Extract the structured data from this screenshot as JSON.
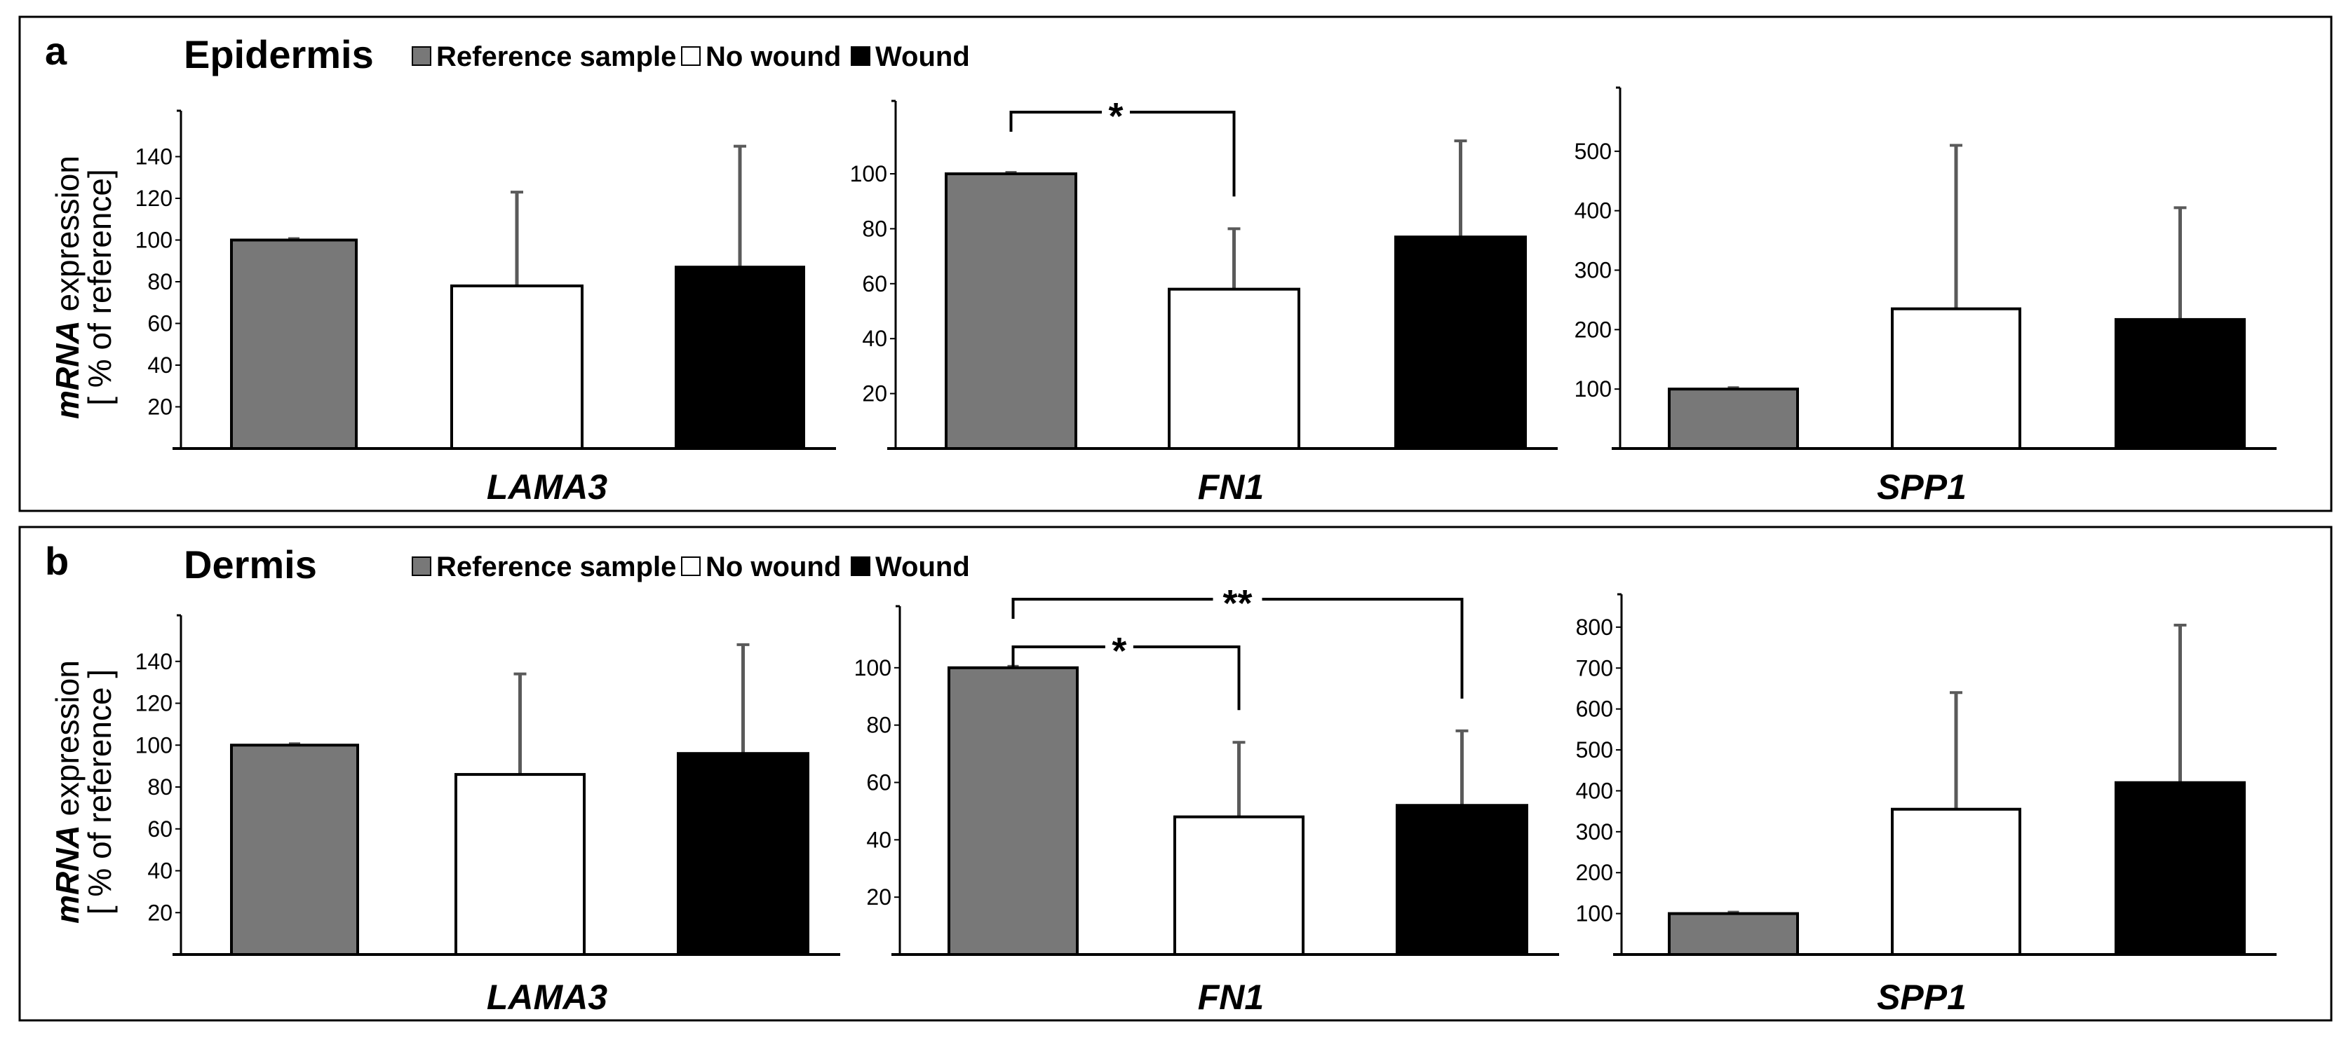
{
  "legend": {
    "reference": "Reference sample",
    "nowound": "No wound",
    "wound": "Wound"
  },
  "colors": {
    "reference": "#787878",
    "nowound": "#ffffff",
    "wound": "#000000",
    "error_bar": "#5a5a5a"
  },
  "ylabel": {
    "italic": "mRNA",
    "rest": " expression",
    "line2_a": "[ % of reference]",
    "line2_b": "[ % of reference ]"
  },
  "panels": [
    {
      "letter": "a",
      "title": "Epidermis"
    },
    {
      "letter": "b",
      "title": "Dermis"
    }
  ],
  "chart_data": [
    {
      "id": "a-lama3",
      "type": "bar",
      "panel": "a",
      "tissue": "Epidermis",
      "title": "LAMA3",
      "categories": [
        "Reference sample",
        "No wound",
        "Wound"
      ],
      "values": [
        100,
        78,
        87
      ],
      "errors": [
        0,
        45,
        58
      ],
      "ticks": [
        20,
        40,
        60,
        80,
        100,
        120,
        140
      ],
      "ylim": [
        0,
        160
      ],
      "significance": []
    },
    {
      "id": "a-fn1",
      "type": "bar",
      "panel": "a",
      "tissue": "Epidermis",
      "title": "FN1",
      "categories": [
        "Reference sample",
        "No wound",
        "Wound"
      ],
      "values": [
        100,
        58,
        77
      ],
      "errors": [
        0,
        22,
        35
      ],
      "ticks": [
        20,
        40,
        60,
        80,
        100
      ],
      "ylim": [
        0,
        125
      ],
      "significance": [
        {
          "from": 0,
          "to": 1,
          "label": "*"
        }
      ]
    },
    {
      "id": "a-spp1",
      "type": "bar",
      "panel": "a",
      "tissue": "Epidermis",
      "title": "SPP1",
      "categories": [
        "Reference sample",
        "No wound",
        "Wound"
      ],
      "values": [
        100,
        235,
        217
      ],
      "errors": [
        0,
        275,
        188
      ],
      "ticks": [
        100,
        200,
        300,
        400,
        500
      ],
      "ylim": [
        0,
        600
      ],
      "significance": []
    },
    {
      "id": "b-lama3",
      "type": "bar",
      "panel": "b",
      "tissue": "Dermis",
      "title": "LAMA3",
      "categories": [
        "Reference sample",
        "No wound",
        "Wound"
      ],
      "values": [
        100,
        86,
        96
      ],
      "errors": [
        0,
        48,
        52
      ],
      "ticks": [
        20,
        40,
        60,
        80,
        100,
        120,
        140
      ],
      "ylim": [
        0,
        160
      ],
      "significance": []
    },
    {
      "id": "b-fn1",
      "type": "bar",
      "panel": "b",
      "tissue": "Dermis",
      "title": "FN1",
      "categories": [
        "Reference sample",
        "No wound",
        "Wound"
      ],
      "values": [
        100,
        48,
        52
      ],
      "errors": [
        0,
        26,
        26
      ],
      "ticks": [
        20,
        40,
        60,
        80,
        100
      ],
      "ylim": [
        0,
        120
      ],
      "significance": [
        {
          "from": 0,
          "to": 1,
          "label": "*"
        },
        {
          "from": 0,
          "to": 2,
          "label": "**"
        }
      ]
    },
    {
      "id": "b-spp1",
      "type": "bar",
      "panel": "b",
      "tissue": "Dermis",
      "title": "SPP1",
      "categories": [
        "Reference sample",
        "No wound",
        "Wound"
      ],
      "values": [
        100,
        355,
        420
      ],
      "errors": [
        0,
        285,
        385
      ],
      "ticks": [
        100,
        200,
        300,
        400,
        500,
        600,
        700,
        800
      ],
      "ylim": [
        0,
        870
      ],
      "significance": []
    }
  ]
}
